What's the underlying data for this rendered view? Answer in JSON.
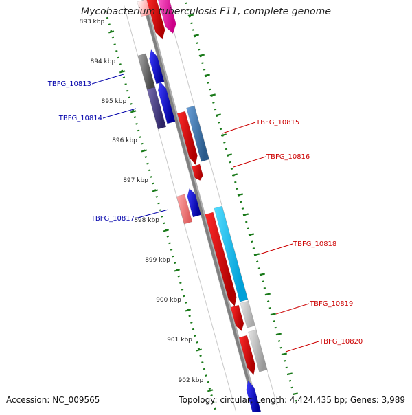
{
  "title": "Mycobacterium tuberculosis F11, complete genome",
  "accession_text": "Accession: NC_009565",
  "summary_text": "Topology: circular; Length: 4,424,435 bp; Genes: 3,989",
  "axis": {
    "unit": "kbp",
    "ticks": [
      "893 kbp",
      "894 kbp",
      "895 kbp",
      "896 kbp",
      "897 kbp",
      "898 kbp",
      "899 kbp",
      "900 kbp",
      "901 kbp",
      "902 kbp"
    ]
  },
  "colors": {
    "backbone": "#808080",
    "forward_label": "#cc0000",
    "reverse_label": "#0000aa",
    "tick": "#1a7a1a"
  },
  "genes": [
    {
      "label": "TBFG_10813",
      "strand": "reverse"
    },
    {
      "label": "TBFG_10814",
      "strand": "reverse"
    },
    {
      "label": "TBFG_10815",
      "strand": "forward"
    },
    {
      "label": "TBFG_10816",
      "strand": "forward"
    },
    {
      "label": "TBFG_10817",
      "strand": "reverse"
    },
    {
      "label": "TBFG_10818",
      "strand": "forward"
    },
    {
      "label": "TBFG_10819",
      "strand": "forward"
    },
    {
      "label": "TBFG_10820",
      "strand": "forward"
    }
  ]
}
